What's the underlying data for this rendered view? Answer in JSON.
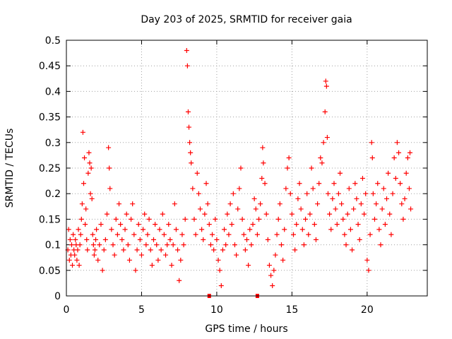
{
  "chart_data": {
    "type": "scatter",
    "title": "Day 203 of 2025, SRMTID for receiver gaia",
    "xlabel": "GPS time / hours",
    "ylabel": "SRMTID / TECUs",
    "xlim": [
      0,
      24
    ],
    "ylim": [
      0,
      0.5
    ],
    "xticks": [
      0,
      5,
      10,
      15,
      20
    ],
    "xtick_labels": [
      "0",
      "5",
      "10",
      "15",
      "20"
    ],
    "yticks": [
      0,
      0.05,
      0.1,
      0.15,
      0.2,
      0.25,
      0.3,
      0.35,
      0.4,
      0.45,
      0.5
    ],
    "ytick_labels": [
      "0",
      "0.05",
      "0.1",
      "0.15",
      "0.2",
      "0.25",
      "0.3",
      "0.35",
      "0.4",
      "0.45",
      "0.5"
    ],
    "grid": true,
    "marker_color": "#ff0000",
    "series": [
      {
        "name": "SRMTID",
        "marker": "plus",
        "points": [
          [
            0.1,
            0.09
          ],
          [
            0.15,
            0.13
          ],
          [
            0.2,
            0.07
          ],
          [
            0.25,
            0.11
          ],
          [
            0.3,
            0.08
          ],
          [
            0.35,
            0.1
          ],
          [
            0.4,
            0.06
          ],
          [
            0.45,
            0.12
          ],
          [
            0.5,
            0.09
          ],
          [
            0.55,
            0.08
          ],
          [
            0.6,
            0.11
          ],
          [
            0.65,
            0.1
          ],
          [
            0.7,
            0.07
          ],
          [
            0.75,
            0.09
          ],
          [
            0.8,
            0.13
          ],
          [
            0.85,
            0.06
          ],
          [
            0.9,
            0.1
          ],
          [
            0.95,
            0.12
          ],
          [
            1.0,
            0.15
          ],
          [
            1.05,
            0.18
          ],
          [
            1.1,
            0.32
          ],
          [
            1.15,
            0.22
          ],
          [
            1.2,
            0.27
          ],
          [
            1.25,
            0.14
          ],
          [
            1.3,
            0.17
          ],
          [
            1.35,
            0.11
          ],
          [
            1.4,
            0.09
          ],
          [
            1.45,
            0.24
          ],
          [
            1.5,
            0.28
          ],
          [
            1.55,
            0.26
          ],
          [
            1.6,
            0.2
          ],
          [
            1.65,
            0.25
          ],
          [
            1.7,
            0.19
          ],
          [
            1.75,
            0.12
          ],
          [
            1.8,
            0.1
          ],
          [
            1.85,
            0.08
          ],
          [
            1.9,
            0.09
          ],
          [
            1.95,
            0.11
          ],
          [
            2.0,
            0.13
          ],
          [
            2.1,
            0.07
          ],
          [
            2.2,
            0.1
          ],
          [
            2.3,
            0.14
          ],
          [
            2.4,
            0.05
          ],
          [
            2.5,
            0.09
          ],
          [
            2.6,
            0.11
          ],
          [
            2.7,
            0.16
          ],
          [
            2.8,
            0.29
          ],
          [
            2.85,
            0.25
          ],
          [
            2.9,
            0.21
          ],
          [
            3.0,
            0.13
          ],
          [
            3.1,
            0.1
          ],
          [
            3.2,
            0.08
          ],
          [
            3.3,
            0.15
          ],
          [
            3.4,
            0.12
          ],
          [
            3.5,
            0.18
          ],
          [
            3.6,
            0.14
          ],
          [
            3.7,
            0.11
          ],
          [
            3.8,
            0.09
          ],
          [
            3.9,
            0.13
          ],
          [
            4.0,
            0.16
          ],
          [
            4.1,
            0.1
          ],
          [
            4.2,
            0.07
          ],
          [
            4.3,
            0.15
          ],
          [
            4.4,
            0.18
          ],
          [
            4.5,
            0.12
          ],
          [
            4.6,
            0.05
          ],
          [
            4.7,
            0.09
          ],
          [
            4.8,
            0.14
          ],
          [
            4.9,
            0.11
          ],
          [
            5.0,
            0.08
          ],
          [
            5.1,
            0.13
          ],
          [
            5.2,
            0.16
          ],
          [
            5.3,
            0.1
          ],
          [
            5.4,
            0.12
          ],
          [
            5.5,
            0.15
          ],
          [
            5.6,
            0.09
          ],
          [
            5.7,
            0.06
          ],
          [
            5.8,
            0.11
          ],
          [
            5.9,
            0.14
          ],
          [
            6.0,
            0.1
          ],
          [
            6.1,
            0.07
          ],
          [
            6.2,
            0.13
          ],
          [
            6.3,
            0.09
          ],
          [
            6.4,
            0.16
          ],
          [
            6.5,
            0.12
          ],
          [
            6.6,
            0.08
          ],
          [
            6.7,
            0.1
          ],
          [
            6.8,
            0.14
          ],
          [
            6.9,
            0.11
          ],
          [
            7.0,
            0.06
          ],
          [
            7.1,
            0.1
          ],
          [
            7.2,
            0.18
          ],
          [
            7.3,
            0.13
          ],
          [
            7.4,
            0.09
          ],
          [
            7.5,
            0.03
          ],
          [
            7.6,
            0.07
          ],
          [
            7.7,
            0.12
          ],
          [
            7.8,
            0.1
          ],
          [
            7.9,
            0.15
          ],
          [
            8.0,
            0.48
          ],
          [
            8.05,
            0.45
          ],
          [
            8.1,
            0.36
          ],
          [
            8.15,
            0.33
          ],
          [
            8.2,
            0.3
          ],
          [
            8.25,
            0.28
          ],
          [
            8.3,
            0.26
          ],
          [
            8.4,
            0.21
          ],
          [
            8.5,
            0.15
          ],
          [
            8.6,
            0.12
          ],
          [
            8.7,
            0.24
          ],
          [
            8.8,
            0.2
          ],
          [
            8.9,
            0.17
          ],
          [
            9.0,
            0.13
          ],
          [
            9.1,
            0.11
          ],
          [
            9.2,
            0.16
          ],
          [
            9.3,
            0.22
          ],
          [
            9.4,
            0.18
          ],
          [
            9.5,
            0.14
          ],
          [
            9.6,
            0.1
          ],
          [
            9.7,
            0.12
          ],
          [
            9.8,
            0.09
          ],
          [
            9.9,
            0.15
          ],
          [
            10.0,
            0.11
          ],
          [
            10.1,
            0.07
          ],
          [
            10.2,
            0.05
          ],
          [
            10.3,
            0.02
          ],
          [
            10.4,
            0.09
          ],
          [
            10.5,
            0.13
          ],
          [
            10.6,
            0.1
          ],
          [
            10.7,
            0.16
          ],
          [
            10.8,
            0.12
          ],
          [
            10.9,
            0.18
          ],
          [
            11.0,
            0.14
          ],
          [
            11.1,
            0.2
          ],
          [
            11.2,
            0.1
          ],
          [
            11.3,
            0.08
          ],
          [
            11.4,
            0.17
          ],
          [
            11.5,
            0.21
          ],
          [
            11.6,
            0.25
          ],
          [
            11.7,
            0.15
          ],
          [
            11.8,
            0.12
          ],
          [
            11.9,
            0.09
          ],
          [
            12.0,
            0.11
          ],
          [
            12.1,
            0.06
          ],
          [
            12.2,
            0.13
          ],
          [
            12.3,
            0.1
          ],
          [
            12.4,
            0.14
          ],
          [
            12.5,
            0.19
          ],
          [
            12.6,
            0.17
          ],
          [
            12.7,
            0.12
          ],
          [
            12.8,
            0.15
          ],
          [
            12.9,
            0.18
          ],
          [
            13.0,
            0.23
          ],
          [
            13.05,
            0.29
          ],
          [
            13.1,
            0.26
          ],
          [
            13.2,
            0.22
          ],
          [
            13.3,
            0.16
          ],
          [
            13.4,
            0.11
          ],
          [
            13.5,
            0.06
          ],
          [
            13.6,
            0.04
          ],
          [
            13.7,
            0.02
          ],
          [
            13.8,
            0.05
          ],
          [
            13.9,
            0.08
          ],
          [
            14.0,
            0.12
          ],
          [
            14.1,
            0.15
          ],
          [
            14.2,
            0.18
          ],
          [
            14.3,
            0.1
          ],
          [
            14.4,
            0.07
          ],
          [
            14.5,
            0.13
          ],
          [
            14.6,
            0.21
          ],
          [
            14.7,
            0.25
          ],
          [
            14.8,
            0.27
          ],
          [
            14.9,
            0.2
          ],
          [
            15.0,
            0.16
          ],
          [
            15.1,
            0.12
          ],
          [
            15.2,
            0.09
          ],
          [
            15.3,
            0.14
          ],
          [
            15.4,
            0.19
          ],
          [
            15.5,
            0.22
          ],
          [
            15.6,
            0.17
          ],
          [
            15.7,
            0.13
          ],
          [
            15.8,
            0.1
          ],
          [
            15.9,
            0.15
          ],
          [
            16.0,
            0.2
          ],
          [
            16.1,
            0.12
          ],
          [
            16.2,
            0.16
          ],
          [
            16.3,
            0.25
          ],
          [
            16.4,
            0.21
          ],
          [
            16.5,
            0.14
          ],
          [
            16.6,
            0.11
          ],
          [
            16.7,
            0.18
          ],
          [
            16.8,
            0.22
          ],
          [
            16.9,
            0.27
          ],
          [
            17.0,
            0.26
          ],
          [
            17.1,
            0.3
          ],
          [
            17.2,
            0.36
          ],
          [
            17.25,
            0.42
          ],
          [
            17.3,
            0.41
          ],
          [
            17.35,
            0.31
          ],
          [
            17.4,
            0.2
          ],
          [
            17.5,
            0.16
          ],
          [
            17.6,
            0.13
          ],
          [
            17.7,
            0.19
          ],
          [
            17.8,
            0.22
          ],
          [
            17.9,
            0.17
          ],
          [
            18.0,
            0.14
          ],
          [
            18.1,
            0.2
          ],
          [
            18.2,
            0.24
          ],
          [
            18.3,
            0.18
          ],
          [
            18.4,
            0.15
          ],
          [
            18.5,
            0.12
          ],
          [
            18.6,
            0.1
          ],
          [
            18.7,
            0.16
          ],
          [
            18.8,
            0.21
          ],
          [
            18.9,
            0.13
          ],
          [
            19.0,
            0.09
          ],
          [
            19.1,
            0.17
          ],
          [
            19.2,
            0.22
          ],
          [
            19.3,
            0.19
          ],
          [
            19.4,
            0.14
          ],
          [
            19.5,
            0.11
          ],
          [
            19.6,
            0.18
          ],
          [
            19.7,
            0.23
          ],
          [
            19.8,
            0.16
          ],
          [
            19.9,
            0.2
          ],
          [
            20.0,
            0.07
          ],
          [
            20.1,
            0.05
          ],
          [
            20.2,
            0.12
          ],
          [
            20.3,
            0.3
          ],
          [
            20.35,
            0.27
          ],
          [
            20.4,
            0.2
          ],
          [
            20.5,
            0.15
          ],
          [
            20.6,
            0.18
          ],
          [
            20.7,
            0.22
          ],
          [
            20.8,
            0.13
          ],
          [
            20.9,
            0.1
          ],
          [
            21.0,
            0.17
          ],
          [
            21.1,
            0.21
          ],
          [
            21.2,
            0.14
          ],
          [
            21.3,
            0.19
          ],
          [
            21.4,
            0.24
          ],
          [
            21.5,
            0.16
          ],
          [
            21.6,
            0.12
          ],
          [
            21.7,
            0.2
          ],
          [
            21.8,
            0.27
          ],
          [
            21.9,
            0.23
          ],
          [
            22.0,
            0.3
          ],
          [
            22.1,
            0.28
          ],
          [
            22.2,
            0.22
          ],
          [
            22.3,
            0.18
          ],
          [
            22.4,
            0.15
          ],
          [
            22.5,
            0.19
          ],
          [
            22.6,
            0.24
          ],
          [
            22.7,
            0.27
          ],
          [
            22.8,
            0.21
          ],
          [
            22.85,
            0.28
          ],
          [
            22.9,
            0.17
          ]
        ]
      }
    ],
    "data_gaps": [
      {
        "x": 9.5,
        "y": 0
      },
      {
        "x": 12.7,
        "y": 0
      }
    ]
  }
}
